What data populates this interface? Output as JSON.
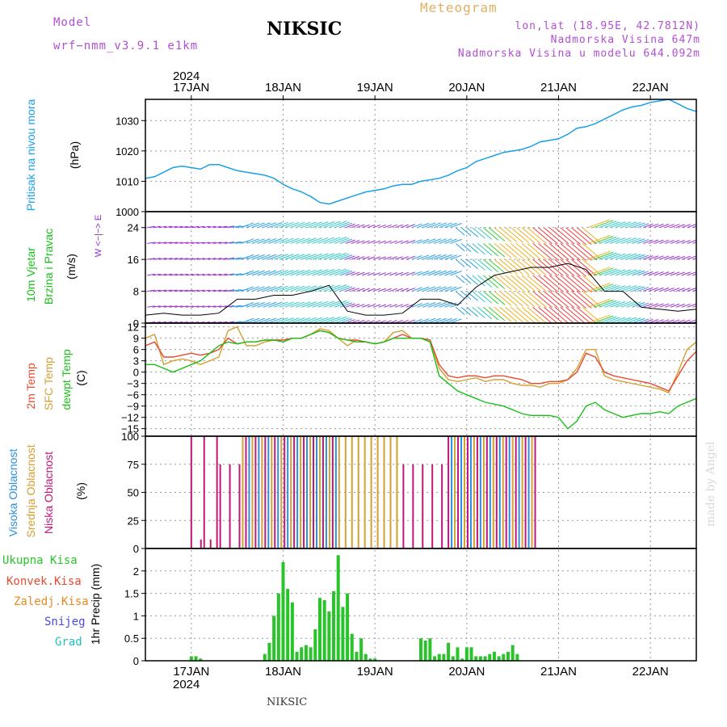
{
  "header": {
    "model_label": "Model",
    "model_name": "wrf−nmm_v3.9.1 e1km",
    "station": "NIKSIC",
    "meteogram_label": "Meteogram",
    "coords": "lon,lat (18.95E, 42.7812N)",
    "altitude": "Nadmorska Visina 647m",
    "model_altitude": "Nadmorska Visina u modelu 644.092m",
    "credit": "made by Angel",
    "footer": "NIKSIC"
  },
  "time_axis": {
    "year": "2024",
    "day_labels": [
      "17JAN",
      "18JAN",
      "19JAN",
      "20JAN",
      "21JAN",
      "22JAN"
    ],
    "day_positions": [
      0,
      1,
      2,
      3,
      4,
      5
    ],
    "range_days": [
      -0.5,
      5.5
    ]
  },
  "colors": {
    "pressure": "#1aa0e8",
    "temp2m": "#e84a30",
    "sfc": "#d4a030",
    "dewpt": "#19c019",
    "high_cloud": "#2a8fe0",
    "mid_cloud": "#d4a030",
    "low_cloud": "#c0157a",
    "total_precip": "#29c429",
    "conv_precip": "#e84a30",
    "frozen_precip": "#e88a20",
    "snow": "#4a4ae0",
    "graupel": "#20c0c0",
    "wind_label": "#19c019",
    "cloud_axis_unit": "#9030c0",
    "header_purple": "#b050d0",
    "header_gold": "#e0b060"
  },
  "panels": {
    "pressure": {
      "labels": [
        "Pritisak na nivou mora"
      ],
      "unit": "(hPa)",
      "ticks": [
        1000,
        1010,
        1020,
        1030
      ]
    },
    "wind": {
      "labels": [
        "10m Vjetar",
        "Brzina i Pravac"
      ],
      "unit": "(m/s)",
      "ticks": [
        0,
        8,
        16,
        24
      ],
      "compass": "W <−|−> E"
    },
    "temperature": {
      "labels": [
        "2m Temp",
        "SFC Temp",
        "dewpt Temp"
      ],
      "unit": "(C)",
      "ticks": [
        -15,
        -12,
        -9,
        -6,
        -3,
        0,
        3,
        6,
        9,
        12
      ]
    },
    "cloud": {
      "labels": [
        "Visoka Oblacnost",
        "Srednja Oblacnost",
        "Niska Oblacnost"
      ],
      "unit": "(%)",
      "ticks": [
        0,
        25,
        50,
        75,
        100
      ]
    },
    "precip": {
      "labels": [
        "Ukupna Kisa",
        "Konvek.Kisa",
        "Zaledj.Kisa",
        "Snijeg",
        "Grad"
      ],
      "unit": "1hr Precip (mm)",
      "ticks": [
        0,
        0.5,
        1,
        1.5,
        2
      ]
    }
  },
  "chart_data": {
    "type": "line",
    "x_unit": "days from 2024-01-17 00:00 UTC",
    "pressure_series": {
      "x": [
        -0.5,
        -0.4,
        -0.3,
        -0.2,
        -0.1,
        0,
        0.1,
        0.2,
        0.3,
        0.4,
        0.5,
        0.6,
        0.7,
        0.8,
        0.9,
        1,
        1.1,
        1.2,
        1.3,
        1.4,
        1.5,
        1.6,
        1.7,
        1.8,
        1.9,
        2,
        2.1,
        2.2,
        2.3,
        2.4,
        2.5,
        2.6,
        2.7,
        2.8,
        2.9,
        3,
        3.1,
        3.2,
        3.3,
        3.4,
        3.5,
        3.6,
        3.7,
        3.8,
        3.9,
        4,
        4.1,
        4.2,
        4.3,
        4.4,
        4.5,
        4.6,
        4.7,
        4.8,
        4.9,
        5,
        5.1,
        5.2,
        5.3,
        5.4,
        5.5
      ],
      "values": [
        1011,
        1011.5,
        1013,
        1014.5,
        1015,
        1014.5,
        1014,
        1015.5,
        1015.5,
        1014.5,
        1013.5,
        1013,
        1012.5,
        1012,
        1011,
        1009,
        1007.5,
        1006.5,
        1005,
        1003,
        1002.5,
        1003.5,
        1004.5,
        1005.5,
        1006.5,
        1007,
        1007.5,
        1008.5,
        1009,
        1009,
        1010,
        1010.5,
        1011,
        1012,
        1013.5,
        1014.5,
        1016.5,
        1017.5,
        1018.5,
        1019.5,
        1020,
        1020.5,
        1021.5,
        1023,
        1023.5,
        1024,
        1025.5,
        1027.5,
        1028,
        1029,
        1030.5,
        1032,
        1033.5,
        1034.5,
        1035,
        1036,
        1036.5,
        1037,
        1035.5,
        1034,
        1033
      ],
      "ylim": [
        1000,
        1037
      ]
    },
    "wind_speed_series": {
      "x": [
        -0.5,
        -0.3,
        -0.1,
        0.1,
        0.3,
        0.5,
        0.7,
        0.9,
        1.1,
        1.3,
        1.5,
        1.7,
        1.9,
        2.1,
        2.3,
        2.5,
        2.7,
        2.9,
        3.1,
        3.3,
        3.5,
        3.7,
        3.9,
        4.1,
        4.3,
        4.5,
        4.7,
        4.9,
        5.1,
        5.3,
        5.5
      ],
      "values": [
        2,
        2.5,
        2,
        2,
        2.5,
        6,
        6,
        7,
        7,
        8,
        9.5,
        3,
        2,
        2,
        2.5,
        6,
        6,
        4.5,
        9,
        12,
        13,
        14,
        14,
        15,
        13.5,
        8,
        8,
        4,
        3.5,
        3,
        3.5
      ],
      "ylim": [
        0,
        28
      ]
    },
    "temperature": {
      "x": [
        -0.5,
        -0.4,
        -0.3,
        -0.2,
        -0.1,
        0,
        0.1,
        0.2,
        0.3,
        0.4,
        0.5,
        0.6,
        0.7,
        0.8,
        0.9,
        1,
        1.1,
        1.2,
        1.3,
        1.4,
        1.5,
        1.6,
        1.7,
        1.8,
        1.9,
        2,
        2.1,
        2.2,
        2.3,
        2.4,
        2.5,
        2.6,
        2.7,
        2.8,
        2.9,
        3,
        3.1,
        3.2,
        3.3,
        3.4,
        3.5,
        3.6,
        3.7,
        3.8,
        3.9,
        4,
        4.1,
        4.2,
        4.3,
        4.4,
        4.5,
        4.6,
        4.7,
        4.8,
        4.9,
        5,
        5.1,
        5.2,
        5.3,
        5.4,
        5.5
      ],
      "t2m": [
        7,
        8,
        4,
        4,
        4.5,
        5,
        4.5,
        5,
        6,
        9,
        7.5,
        8,
        8,
        8.5,
        8.5,
        8.5,
        9,
        9,
        10,
        11,
        10.5,
        9,
        8.5,
        8.5,
        8,
        7.5,
        8,
        9,
        10,
        9,
        9,
        8.5,
        2,
        -1,
        -1.5,
        -1,
        -1,
        -1.5,
        -1,
        -1,
        -1.5,
        -2,
        -3,
        -3,
        -2.5,
        -2.5,
        -2,
        0,
        5,
        4,
        0,
        -1,
        -1.5,
        -2,
        -2.5,
        -3,
        -4,
        -5,
        -1,
        3,
        5.5
      ],
      "sfc": [
        9,
        10,
        2,
        3,
        3.5,
        3,
        2,
        3,
        4,
        11,
        12,
        7,
        7,
        8,
        8.5,
        8.5,
        9,
        9,
        10,
        11.5,
        11,
        9,
        7,
        8.5,
        8,
        7.5,
        8,
        10.5,
        11,
        9,
        9,
        8.5,
        1,
        -2,
        -2.5,
        -2,
        -1.5,
        -2.5,
        -2,
        -2,
        -3,
        -3.5,
        -3.5,
        -4,
        -3,
        -3,
        -2,
        1,
        6,
        6,
        -1,
        -2,
        -2.5,
        -3,
        -3.5,
        -4,
        -4.5,
        -5.5,
        0,
        6,
        8
      ],
      "dewpt": [
        2,
        2,
        1,
        0,
        1,
        2,
        3,
        5,
        7,
        8,
        7.5,
        8,
        8,
        8.5,
        8.5,
        8,
        9,
        9,
        10,
        11,
        10.5,
        9,
        8.5,
        8,
        8,
        7.5,
        8,
        9,
        9,
        9,
        9,
        8,
        -1,
        -3,
        -5,
        -6,
        -7,
        -8,
        -8.5,
        -9,
        -10,
        -11,
        -11.5,
        -11.5,
        -11.5,
        -12,
        -15,
        -13,
        -9,
        -8,
        -10,
        -11,
        -12,
        -11.5,
        -11,
        -11,
        -10.5,
        -11,
        -9,
        -8,
        -7
      ],
      "ylim": [
        -17,
        13
      ]
    },
    "cloud_cover": {
      "ylim": [
        0,
        100
      ]
    },
    "precip_1hr": {
      "x": [
        0,
        0.05,
        0.1,
        0.8,
        0.85,
        0.9,
        0.95,
        1,
        1.05,
        1.1,
        1.15,
        1.2,
        1.25,
        1.3,
        1.35,
        1.4,
        1.45,
        1.5,
        1.55,
        1.6,
        1.65,
        1.7,
        1.75,
        1.8,
        1.85,
        1.9,
        1.95,
        2,
        2.5,
        2.55,
        2.6,
        2.65,
        2.7,
        2.75,
        2.8,
        2.85,
        2.9,
        2.95,
        3,
        3.05,
        3.1,
        3.15,
        3.2,
        3.25,
        3.3,
        3.35,
        3.4,
        3.45,
        3.5,
        3.55
      ],
      "total": [
        0.1,
        0.1,
        0.05,
        0.15,
        0.4,
        1.0,
        1.5,
        2.2,
        1.6,
        1.3,
        0.2,
        0.3,
        0.35,
        0.3,
        0.7,
        1.4,
        1.35,
        1.1,
        1.55,
        2.35,
        1.2,
        1.5,
        0.6,
        0.2,
        0.5,
        0.15,
        0.05,
        0.05,
        0.5,
        0.45,
        0.5,
        0.1,
        0.15,
        0.15,
        0.4,
        0.1,
        0.3,
        0.05,
        0.3,
        0.3,
        0.1,
        0.1,
        0.1,
        0.15,
        0.2,
        0.1,
        0.15,
        0.2,
        0.35,
        0.15
      ],
      "ylim": [
        0,
        2.5
      ]
    }
  }
}
